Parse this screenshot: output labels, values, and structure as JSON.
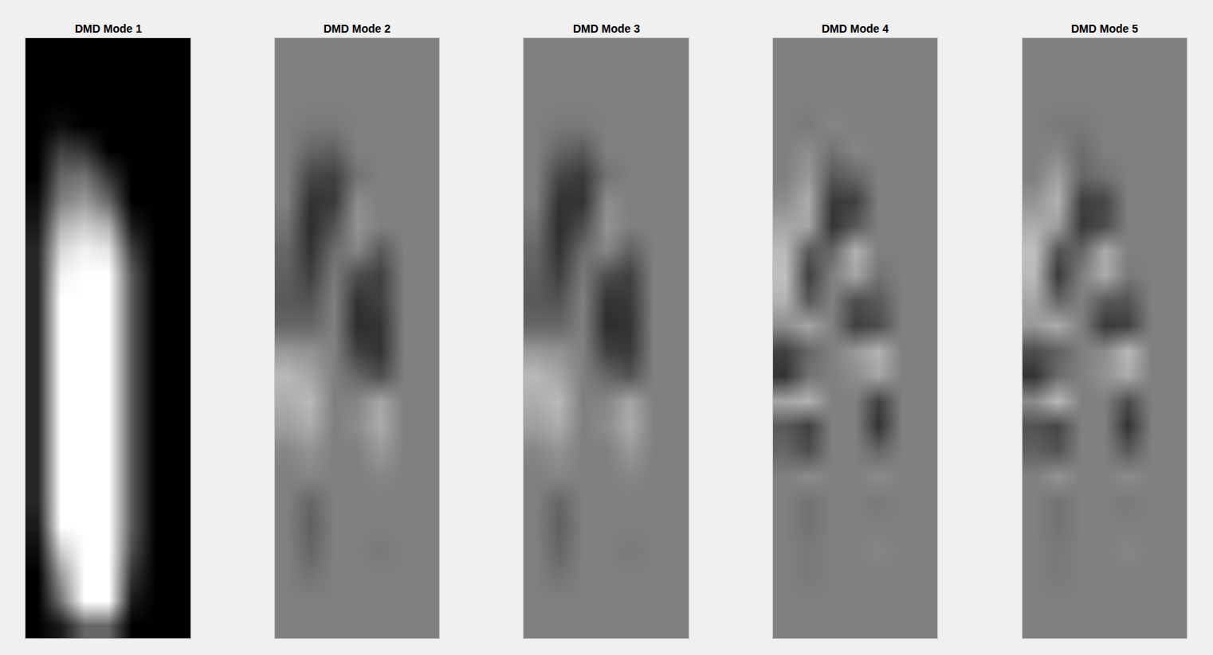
{
  "chart_data": [
    {
      "type": "heatmap",
      "title": "DMD Mode 1",
      "zlim": [
        0,
        1
      ],
      "tick_labels": false,
      "cells": [
        [
          0,
          0,
          0,
          0,
          0,
          0,
          0
        ],
        [
          0,
          0,
          0,
          0,
          0,
          0,
          0
        ],
        [
          0,
          0,
          0,
          0,
          0,
          0,
          0
        ],
        [
          0,
          0.05,
          0,
          0,
          0,
          0,
          0
        ],
        [
          0,
          0.25,
          0.2,
          0,
          0,
          0,
          0
        ],
        [
          0,
          0.4,
          0.45,
          0.2,
          0,
          0,
          0
        ],
        [
          0.05,
          0.5,
          0.6,
          0.4,
          0,
          0,
          0
        ],
        [
          0.1,
          0.7,
          0.8,
          0.7,
          0.1,
          0,
          0
        ],
        [
          0.15,
          0.85,
          0.95,
          0.9,
          0.25,
          0,
          0
        ],
        [
          0.15,
          0.95,
          1,
          1,
          0.35,
          0,
          0
        ],
        [
          0.15,
          1,
          1,
          1,
          0.35,
          0,
          0
        ],
        [
          0.15,
          1,
          1,
          1,
          0.35,
          0,
          0
        ],
        [
          0.15,
          1,
          1,
          1,
          0.35,
          0,
          0
        ],
        [
          0.15,
          1,
          1,
          1,
          0.35,
          0,
          0
        ],
        [
          0.15,
          1,
          1,
          1,
          0.35,
          0,
          0
        ],
        [
          0.15,
          1,
          1,
          1,
          0.35,
          0,
          0
        ],
        [
          0.15,
          1,
          1,
          1,
          0.35,
          0,
          0
        ],
        [
          0.15,
          1,
          1,
          1,
          0.35,
          0,
          0
        ],
        [
          0.15,
          1,
          1,
          1,
          0.35,
          0,
          0
        ],
        [
          0.1,
          1,
          1,
          1,
          0.35,
          0,
          0
        ],
        [
          0.05,
          0.8,
          1,
          1,
          0.3,
          0,
          0
        ],
        [
          0,
          0.6,
          1,
          1,
          0.2,
          0,
          0
        ],
        [
          0,
          0.45,
          1,
          1,
          0.1,
          0,
          0
        ],
        [
          0,
          0.1,
          0.4,
          0.4,
          0,
          0,
          0
        ]
      ]
    },
    {
      "type": "heatmap",
      "title": "DMD Mode 2",
      "zlim": [
        -1,
        1
      ],
      "tick_labels": false,
      "cells": [
        [
          0,
          0,
          0,
          0,
          0,
          0,
          0
        ],
        [
          0,
          0,
          0,
          0,
          0,
          0,
          0
        ],
        [
          0,
          0,
          0,
          0,
          0,
          0,
          0
        ],
        [
          0,
          -0.05,
          -0.05,
          0,
          0,
          0,
          0
        ],
        [
          0,
          -0.2,
          -0.25,
          0,
          0,
          0,
          0
        ],
        [
          0,
          -0.45,
          -0.5,
          -0.1,
          0,
          0,
          0
        ],
        [
          0,
          -0.6,
          -0.55,
          0.1,
          0,
          0,
          0
        ],
        [
          -0.1,
          -0.65,
          -0.35,
          0.15,
          0,
          0,
          0
        ],
        [
          -0.2,
          -0.6,
          -0.15,
          0.05,
          -0.3,
          0,
          0
        ],
        [
          -0.25,
          -0.5,
          -0.05,
          -0.4,
          -0.5,
          0,
          0
        ],
        [
          -0.3,
          -0.35,
          0,
          -0.6,
          -0.5,
          0,
          0
        ],
        [
          -0.2,
          -0.2,
          0,
          -0.65,
          -0.6,
          0,
          0
        ],
        [
          0.2,
          0.15,
          0,
          -0.5,
          -0.6,
          0,
          0
        ],
        [
          0.45,
          0.3,
          0,
          -0.2,
          -0.4,
          0,
          0
        ],
        [
          0.35,
          0.45,
          0,
          0.05,
          0.3,
          0,
          0
        ],
        [
          0.25,
          0.35,
          0,
          0.1,
          0.35,
          0,
          0
        ],
        [
          0.05,
          0.15,
          0,
          0,
          0.2,
          0,
          0
        ],
        [
          0,
          0.05,
          0,
          0,
          0.05,
          0,
          0
        ],
        [
          0,
          -0.2,
          0,
          0,
          0,
          0,
          0
        ],
        [
          0,
          -0.25,
          0,
          0,
          0,
          0,
          0
        ],
        [
          0,
          -0.2,
          0,
          0,
          -0.05,
          0,
          0
        ],
        [
          0,
          -0.1,
          0,
          0,
          0,
          0,
          0
        ],
        [
          0,
          0,
          0,
          0,
          0,
          0,
          0
        ],
        [
          0,
          0,
          0,
          0,
          0,
          0,
          0
        ]
      ]
    },
    {
      "type": "heatmap",
      "title": "DMD Mode 3",
      "zlim": [
        -1,
        1
      ],
      "tick_labels": false,
      "cells": [
        [
          0,
          0,
          0,
          0,
          0,
          0,
          0
        ],
        [
          0,
          0,
          0,
          0,
          0,
          0,
          0
        ],
        [
          0,
          0,
          0,
          0,
          0,
          0,
          0
        ],
        [
          0,
          -0.05,
          -0.05,
          0,
          0,
          0,
          0
        ],
        [
          0,
          -0.2,
          -0.3,
          0,
          0,
          0,
          0
        ],
        [
          0,
          -0.45,
          -0.55,
          -0.1,
          0,
          0,
          0
        ],
        [
          0,
          -0.6,
          -0.6,
          0.1,
          0,
          0,
          0
        ],
        [
          -0.1,
          -0.65,
          -0.4,
          0.15,
          0,
          0,
          0
        ],
        [
          -0.2,
          -0.6,
          -0.15,
          0.05,
          -0.25,
          0,
          0
        ],
        [
          -0.25,
          -0.5,
          -0.05,
          -0.4,
          -0.5,
          0,
          0
        ],
        [
          -0.3,
          -0.35,
          0,
          -0.6,
          -0.55,
          0,
          0
        ],
        [
          -0.2,
          -0.2,
          0,
          -0.65,
          -0.6,
          0,
          0
        ],
        [
          0.2,
          0.15,
          0,
          -0.5,
          -0.55,
          0,
          0
        ],
        [
          0.45,
          0.3,
          0,
          -0.2,
          -0.35,
          0,
          0
        ],
        [
          0.35,
          0.45,
          0,
          0.05,
          0.3,
          0,
          0
        ],
        [
          0.25,
          0.35,
          0,
          0.1,
          0.35,
          0,
          0
        ],
        [
          0.05,
          0.15,
          0,
          0,
          0.2,
          0,
          0
        ],
        [
          0,
          0.05,
          0,
          0,
          0.05,
          0,
          0
        ],
        [
          0,
          -0.2,
          0,
          0,
          0,
          0,
          0
        ],
        [
          0,
          -0.25,
          0,
          0,
          0,
          0,
          0
        ],
        [
          0,
          -0.2,
          0,
          0,
          -0.05,
          0,
          0
        ],
        [
          0,
          -0.1,
          0,
          0,
          0,
          0,
          0
        ],
        [
          0,
          0,
          0,
          0,
          0,
          0,
          0
        ],
        [
          0,
          0,
          0,
          0,
          0,
          0,
          0
        ]
      ]
    },
    {
      "type": "heatmap",
      "title": "DMD Mode 4",
      "zlim": [
        -1,
        1
      ],
      "tick_labels": false,
      "cells": [
        [
          0,
          0,
          0,
          0,
          0,
          0,
          0
        ],
        [
          0,
          0,
          0,
          0,
          0,
          0,
          0
        ],
        [
          0,
          0,
          0,
          0,
          0,
          0,
          0
        ],
        [
          0,
          -0.05,
          0.05,
          0,
          0,
          0,
          0
        ],
        [
          0,
          0.1,
          -0.1,
          0.05,
          0,
          0,
          0
        ],
        [
          0,
          0.2,
          -0.3,
          -0.2,
          0,
          0,
          0
        ],
        [
          0.1,
          0.35,
          -0.55,
          -0.5,
          0,
          0,
          0
        ],
        [
          0.3,
          0.3,
          -0.6,
          -0.3,
          0,
          0,
          0
        ],
        [
          0.45,
          -0.3,
          -0.2,
          0.4,
          0,
          0,
          0
        ],
        [
          0.5,
          -0.5,
          0,
          0.3,
          -0.1,
          0,
          0
        ],
        [
          0.4,
          -0.3,
          0,
          -0.4,
          -0.3,
          0,
          0
        ],
        [
          0.1,
          0.3,
          0,
          -0.5,
          -0.4,
          0,
          0
        ],
        [
          -0.5,
          -0.2,
          0,
          0.2,
          0.4,
          0,
          0
        ],
        [
          -0.6,
          -0.1,
          0,
          0.1,
          0.3,
          0,
          0
        ],
        [
          0.3,
          0.4,
          0,
          0,
          -0.5,
          0,
          0
        ],
        [
          -0.3,
          -0.5,
          0,
          0,
          -0.6,
          0,
          0
        ],
        [
          -0.2,
          -0.4,
          0,
          0,
          -0.2,
          0,
          0
        ],
        [
          0,
          0.1,
          0,
          0,
          0.1,
          0,
          0
        ],
        [
          0,
          -0.1,
          0,
          0,
          -0.05,
          0,
          0
        ],
        [
          0,
          -0.1,
          0,
          0,
          0,
          0,
          0
        ],
        [
          0,
          -0.05,
          0,
          0,
          0.05,
          0,
          0
        ],
        [
          0,
          -0.05,
          0,
          0,
          0,
          0,
          0
        ],
        [
          0,
          0,
          0,
          0,
          0,
          0,
          0
        ],
        [
          0,
          0,
          0,
          0,
          0,
          0,
          0
        ]
      ]
    },
    {
      "type": "heatmap",
      "title": "DMD Mode 5",
      "zlim": [
        -1,
        1
      ],
      "tick_labels": false,
      "cells": [
        [
          0,
          0,
          0,
          0,
          0,
          0,
          0
        ],
        [
          0,
          0,
          0,
          0,
          0,
          0,
          0
        ],
        [
          0,
          0,
          0,
          0,
          0,
          0,
          0
        ],
        [
          0,
          -0.05,
          -0.05,
          0,
          0,
          0,
          0
        ],
        [
          0,
          0.05,
          -0.15,
          0,
          0,
          0,
          0
        ],
        [
          0,
          0.25,
          -0.2,
          -0.1,
          0,
          0,
          0
        ],
        [
          0.15,
          0.4,
          -0.5,
          -0.45,
          0,
          0,
          0
        ],
        [
          0.35,
          0.25,
          -0.55,
          -0.4,
          0,
          0,
          0
        ],
        [
          0.5,
          -0.35,
          -0.2,
          0.35,
          0,
          0,
          0
        ],
        [
          0.45,
          -0.55,
          0,
          0.35,
          -0.05,
          0,
          0
        ],
        [
          0.3,
          -0.2,
          0,
          -0.3,
          -0.35,
          0,
          0
        ],
        [
          0.2,
          0.35,
          0,
          -0.55,
          -0.5,
          0,
          0
        ],
        [
          -0.4,
          -0.25,
          0,
          0.1,
          0.45,
          0,
          0
        ],
        [
          -0.6,
          -0.15,
          0,
          0.15,
          0.35,
          0,
          0
        ],
        [
          0.1,
          0.45,
          0,
          0,
          -0.4,
          0,
          0
        ],
        [
          -0.35,
          -0.45,
          0,
          0,
          -0.6,
          0,
          0
        ],
        [
          -0.25,
          -0.35,
          0,
          0,
          -0.3,
          0,
          0
        ],
        [
          0,
          0.15,
          0,
          0,
          0.1,
          0,
          0
        ],
        [
          0,
          -0.1,
          0,
          0,
          -0.05,
          0,
          0
        ],
        [
          0,
          -0.1,
          0,
          0,
          0,
          0,
          0
        ],
        [
          0,
          -0.05,
          0,
          0,
          0.05,
          0,
          0
        ],
        [
          0,
          -0.05,
          0,
          0,
          0,
          0,
          0
        ],
        [
          0,
          0,
          0,
          0,
          0,
          0,
          0
        ],
        [
          0,
          0,
          0,
          0,
          0,
          0,
          0
        ]
      ]
    }
  ]
}
